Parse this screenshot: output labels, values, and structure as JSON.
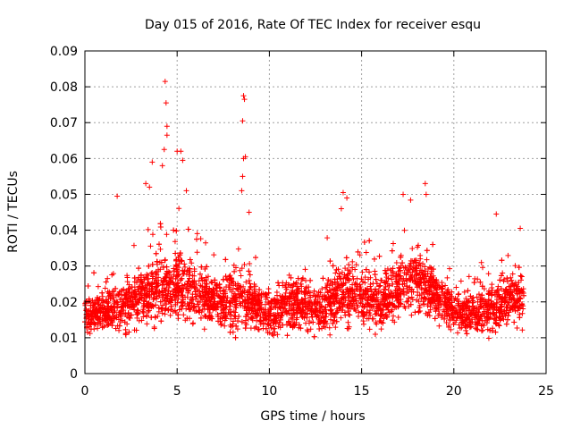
{
  "chart_data": {
    "type": "scatter",
    "title": "Day 015 of 2016, Rate Of TEC Index for receiver esqu",
    "xlabel": "GPS time / hours",
    "ylabel": "ROTI / TECUs",
    "xlim": [
      0,
      25
    ],
    "ylim": [
      0,
      0.09
    ],
    "xticks": [
      "0",
      "5",
      "10",
      "15",
      "20",
      "25"
    ],
    "yticks": [
      "0",
      "0.01",
      "0.02",
      "0.03",
      "0.04",
      "0.05",
      "0.06",
      "0.07",
      "0.08",
      "0.09"
    ],
    "grid": true,
    "marker": "+",
    "color": "#ff0000",
    "series": [
      {
        "name": "ROTI",
        "profile_hours": [
          0,
          1,
          2,
          3,
          4,
          5,
          6,
          7,
          8,
          9,
          10,
          11,
          12,
          13,
          14,
          15,
          16,
          17,
          18,
          19,
          20,
          21,
          22,
          23,
          23.8
        ],
        "profile_mean": [
          0.016,
          0.017,
          0.018,
          0.021,
          0.024,
          0.025,
          0.022,
          0.02,
          0.021,
          0.02,
          0.017,
          0.02,
          0.019,
          0.018,
          0.023,
          0.021,
          0.02,
          0.024,
          0.026,
          0.022,
          0.017,
          0.017,
          0.018,
          0.02,
          0.02
        ],
        "profile_spread": [
          0.006,
          0.006,
          0.008,
          0.01,
          0.012,
          0.012,
          0.009,
          0.008,
          0.01,
          0.008,
          0.007,
          0.009,
          0.008,
          0.008,
          0.01,
          0.009,
          0.009,
          0.011,
          0.011,
          0.009,
          0.007,
          0.007,
          0.008,
          0.008,
          0.008
        ],
        "outliers": [
          [
            4.35,
            0.0815
          ],
          [
            4.4,
            0.0755
          ],
          [
            4.45,
            0.069
          ],
          [
            4.45,
            0.0665
          ],
          [
            4.3,
            0.0625
          ],
          [
            5.0,
            0.062
          ],
          [
            5.2,
            0.062
          ],
          [
            5.3,
            0.0595
          ],
          [
            3.65,
            0.059
          ],
          [
            4.2,
            0.058
          ],
          [
            8.6,
            0.0775
          ],
          [
            8.65,
            0.0765
          ],
          [
            8.55,
            0.0705
          ],
          [
            8.7,
            0.0605
          ],
          [
            8.6,
            0.06
          ],
          [
            8.55,
            0.055
          ],
          [
            8.5,
            0.051
          ],
          [
            1.75,
            0.0495
          ],
          [
            14.0,
            0.0505
          ],
          [
            14.2,
            0.049
          ],
          [
            17.25,
            0.05
          ],
          [
            18.45,
            0.053
          ],
          [
            18.5,
            0.05
          ],
          [
            23.6,
            0.0405
          ],
          [
            22.3,
            0.0445
          ],
          [
            3.3,
            0.053
          ],
          [
            3.5,
            0.052
          ],
          [
            5.5,
            0.051
          ],
          [
            8.9,
            0.045
          ],
          [
            13.9,
            0.046
          ]
        ]
      }
    ]
  }
}
